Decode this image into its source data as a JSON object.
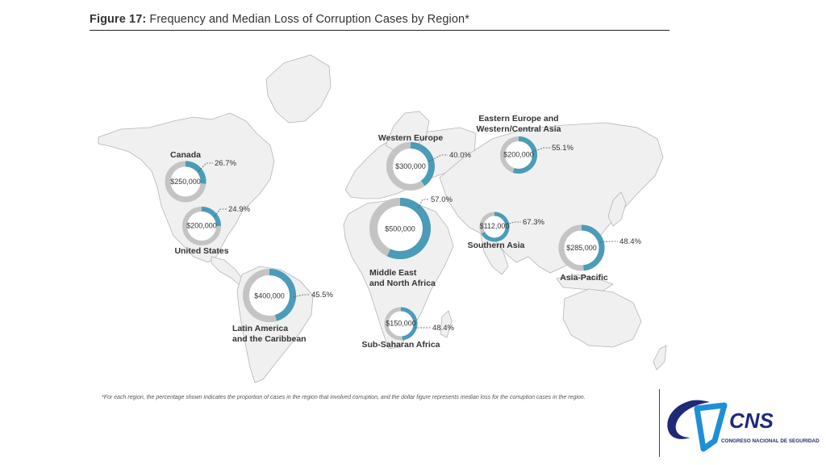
{
  "figure": {
    "title_bold": "Figure 17:",
    "title_rest": " Frequency and Median Loss of Corruption Cases by Region*",
    "footnote": "*For each region, the percentage shown indicates the proportion of cases in the region that involved corruption, and the dollar figure represents median loss for the corruption cases in the region."
  },
  "colors": {
    "ring_gray": "#c4c4c4",
    "ring_blue": "#4a9cb8",
    "land": "#f0f0f0",
    "land_stroke": "#b5b5b5",
    "logo_blue": "#1e2a78",
    "logo_light": "#1f8fd6"
  },
  "chart_data": {
    "type": "donut-map",
    "title": "Frequency and Median Loss of Corruption Cases by Region*",
    "regions": [
      {
        "name": "Canada",
        "percent": 26.7,
        "percent_label": "26.7%",
        "median_loss": "$250,000"
      },
      {
        "name": "United States",
        "percent": 24.9,
        "percent_label": "24.9%",
        "median_loss": "$200,000"
      },
      {
        "name": "Latin America and the Caribbean",
        "name_lines": [
          "Latin America",
          "and the Caribbean"
        ],
        "percent": 45.5,
        "percent_label": "45.5%",
        "median_loss": "$400,000"
      },
      {
        "name": "Western Europe",
        "percent": 40.0,
        "percent_label": "40.0%",
        "median_loss": "$300,000"
      },
      {
        "name": "Middle East and North Africa",
        "name_lines": [
          "Middle East",
          "and North Africa"
        ],
        "percent": 57.0,
        "percent_label": "57.0%",
        "median_loss": "$500,000"
      },
      {
        "name": "Sub-Saharan Africa",
        "percent": 48.4,
        "percent_label": "48.4%",
        "median_loss": "$150,000"
      },
      {
        "name": "Eastern Europe and Western/Central Asia",
        "name_lines": [
          "Eastern Europe and",
          "Western/Central Asia"
        ],
        "percent": 55.1,
        "percent_label": "55.1%",
        "median_loss": "$200,000"
      },
      {
        "name": "Southern Asia",
        "percent": 67.3,
        "percent_label": "67.3%",
        "median_loss": "$112,000"
      },
      {
        "name": "Asia-Pacific",
        "percent": 48.4,
        "percent_label": "48.4%",
        "median_loss": "$285,000"
      }
    ]
  },
  "logo": {
    "big_text": "CNS",
    "sub_text": "CONGRESO NACIONAL DE SEGURIDAD"
  }
}
